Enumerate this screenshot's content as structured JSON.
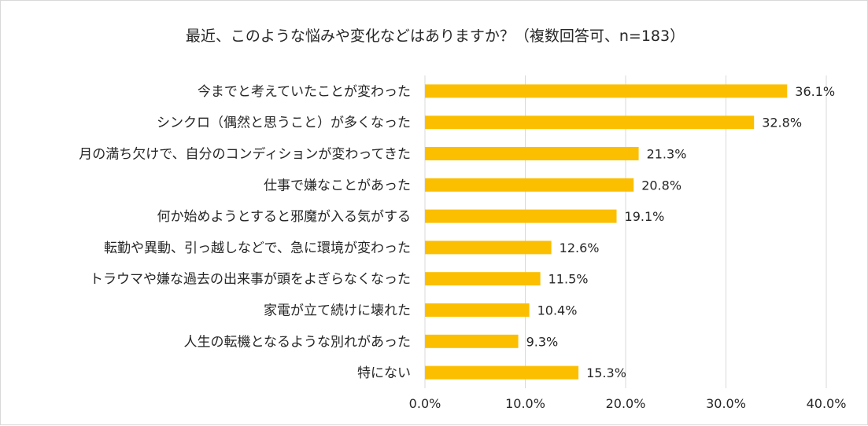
{
  "chart_data": {
    "type": "bar",
    "orientation": "horizontal",
    "title": "最近、このような悩みや変化などはありますか？（複数回答可、n=183）",
    "categories": [
      "今までと考えていたことが変わった",
      "シンクロ（偶然と思うこと）が多くなった",
      "月の満ち欠けで、自分のコンディションが変わってきた",
      "仕事で嫌なことがあった",
      "何か始めようとすると邪魔が入る気がする",
      "転勤や異動、引っ越しなどで、急に環境が変わった",
      "トラウマや嫌な過去の出来事が頭をよぎらなくなった",
      "家電が立て続けに壊れた",
      "人生の転機となるような別れがあった",
      "特にない"
    ],
    "values": [
      36.1,
      32.8,
      21.3,
      20.8,
      19.1,
      12.6,
      11.5,
      10.4,
      9.3,
      15.3
    ],
    "value_labels": [
      "36.1%",
      "32.8%",
      "21.3%",
      "20.8%",
      "19.1%",
      "12.6%",
      "11.5%",
      "10.4%",
      "9.3%",
      "15.3%"
    ],
    "xlim": [
      0,
      40
    ],
    "xticks": [
      0,
      10,
      20,
      30,
      40
    ],
    "xtick_labels": [
      "0.0%",
      "10.0%",
      "20.0%",
      "30.0%",
      "40.0%"
    ],
    "xlabel": "",
    "ylabel": "",
    "grid": true,
    "bar_color": "#fbbf00",
    "grid_color": "#d9d9d9"
  }
}
